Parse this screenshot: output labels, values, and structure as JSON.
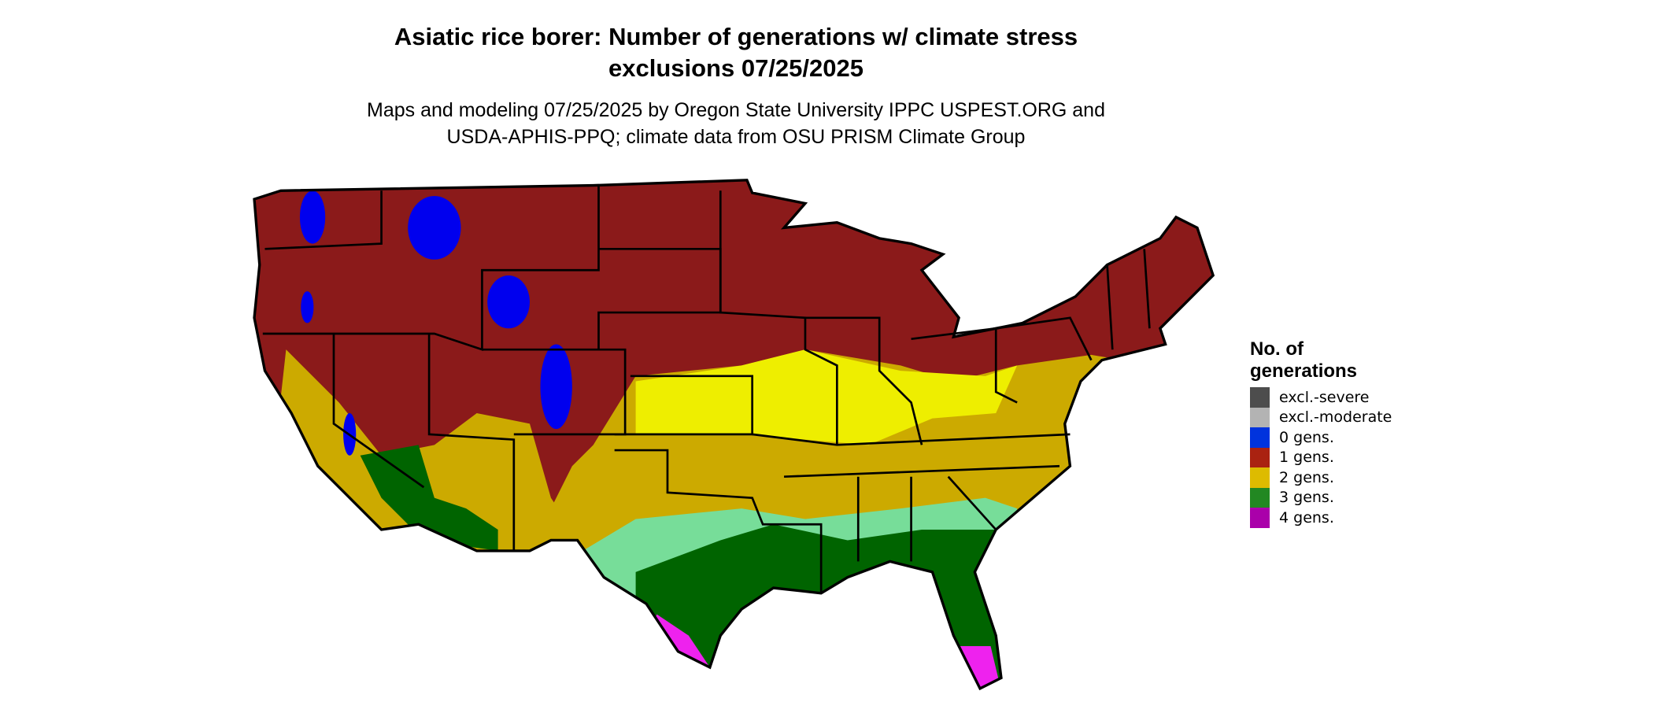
{
  "title_line1": "Asiatic rice borer: Number of generations w/ climate stress",
  "title_line2": "exclusions 07/25/2025",
  "subtitle_line1": "Maps and modeling 07/25/2025 by Oregon State University IPPC USPEST.ORG and",
  "subtitle_line2": "USDA-APHIS-PPQ; climate data from OSU PRISM Climate Group",
  "legend": {
    "title_line1": "No. of",
    "title_line2": "generations",
    "items": [
      {
        "label": "excl.-severe",
        "color": "#4d4d4d"
      },
      {
        "label": "excl.-moderate",
        "color": "#b3b3b3"
      },
      {
        "label": "0 gens.",
        "color": "#0033dd"
      },
      {
        "label": "1 gens.",
        "color": "#aa2211"
      },
      {
        "label": "2 gens.",
        "color": "#ddbb00"
      },
      {
        "label": "3 gens.",
        "color": "#228822"
      },
      {
        "label": "4 gens.",
        "color": "#aa00aa"
      }
    ]
  },
  "map_colors": {
    "one_gen": "#8b1a1a",
    "two_gen": "#ccaa00",
    "two_gen_light": "#eeee00",
    "three_gen": "#006400",
    "three_gen_light": "#77dd99",
    "four_gen": "#ee22ee",
    "zero_gen": "#0000ee",
    "border": "#000000"
  }
}
